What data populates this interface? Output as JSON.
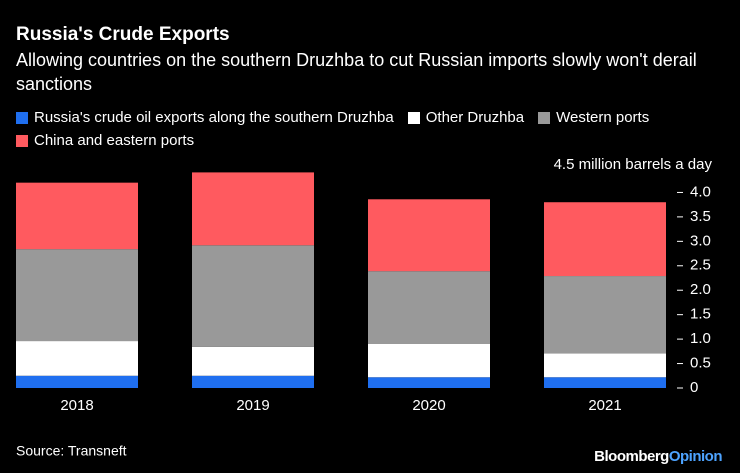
{
  "chart_data": {
    "type": "stacked-bar",
    "title": "Russia's Crude Exports",
    "subtitle": "Allowing countries on the southern Druzhba to cut Russian imports slowly won't derail sanctions",
    "categories": [
      "2018",
      "2019",
      "2020",
      "2021"
    ],
    "series": [
      {
        "name": "Russia's crude oil exports along the southern Druzhba",
        "color": "#1f6ff0",
        "values": [
          0.25,
          0.25,
          0.22,
          0.22
        ]
      },
      {
        "name": "Other Druzhba",
        "color": "#ffffff",
        "values": [
          0.71,
          0.59,
          0.68,
          0.49
        ]
      },
      {
        "name": "Western ports",
        "color": "#999999",
        "values": [
          1.88,
          2.08,
          1.49,
          1.58
        ]
      },
      {
        "name": "China and eastern ports",
        "color": "#ff5a5f",
        "values": [
          1.36,
          1.49,
          1.47,
          1.51
        ]
      }
    ],
    "ylim": [
      0,
      4.5
    ],
    "yticks": [
      0,
      0.5,
      {
        "value": 1,
        "label": "1.0"
      },
      1.5,
      {
        "value": 2,
        "label": "2.0"
      },
      2.5,
      {
        "value": 3,
        "label": "3.0"
      },
      3.5,
      {
        "value": 4,
        "label": "4.0"
      },
      {
        "value": 4.5,
        "label": "4.5 million barrels a day"
      }
    ],
    "source": "Source: Transneft",
    "brand": "Bloomberg",
    "brand_suffix": "Opinion"
  }
}
